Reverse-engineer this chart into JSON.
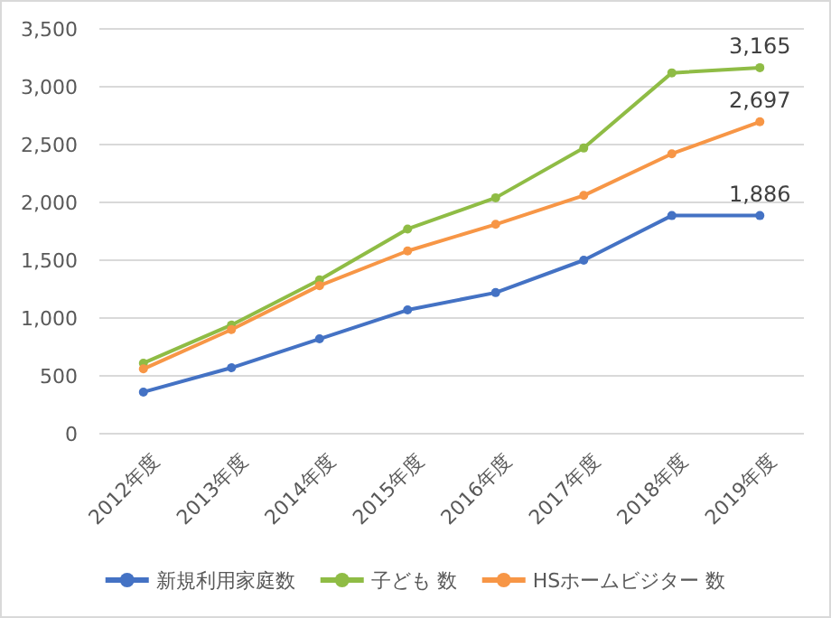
{
  "chart_data": {
    "type": "line",
    "categories": [
      "2012年度",
      "2013年度",
      "2014年度",
      "2015年度",
      "2016年度",
      "2017年度",
      "2018年度",
      "2019年度"
    ],
    "series": [
      {
        "name": "新規利用家庭数",
        "color": "#4472c4",
        "values": [
          360,
          570,
          820,
          1070,
          1220,
          1500,
          1886,
          1886
        ],
        "value_labels": [
          null,
          null,
          null,
          null,
          null,
          null,
          null,
          "1,886"
        ]
      },
      {
        "name": "子ども 数",
        "color": "#8fbc45",
        "values": [
          610,
          940,
          1330,
          1770,
          2040,
          2470,
          3120,
          3165
        ],
        "value_labels": [
          null,
          null,
          null,
          null,
          null,
          null,
          null,
          "3,165"
        ]
      },
      {
        "name": "HSホームビジター 数",
        "color": "#f79646",
        "values": [
          560,
          900,
          1280,
          1580,
          1810,
          2060,
          2420,
          2697
        ],
        "value_labels": [
          null,
          null,
          null,
          null,
          null,
          null,
          null,
          "2,697"
        ]
      }
    ],
    "ylim": [
      0,
      3500
    ],
    "yticks": [
      {
        "value": 0,
        "label": "0"
      },
      {
        "value": 500,
        "label": "500"
      },
      {
        "value": 1000,
        "label": "1,000"
      },
      {
        "value": 1500,
        "label": "1,500"
      },
      {
        "value": 2000,
        "label": "2,000"
      },
      {
        "value": 2500,
        "label": "2,500"
      },
      {
        "value": 3000,
        "label": "3,000"
      },
      {
        "value": 3500,
        "label": "3,500"
      }
    ],
    "grid": "y",
    "legend": "bottom",
    "marker": "circle",
    "line_style": "solid"
  }
}
